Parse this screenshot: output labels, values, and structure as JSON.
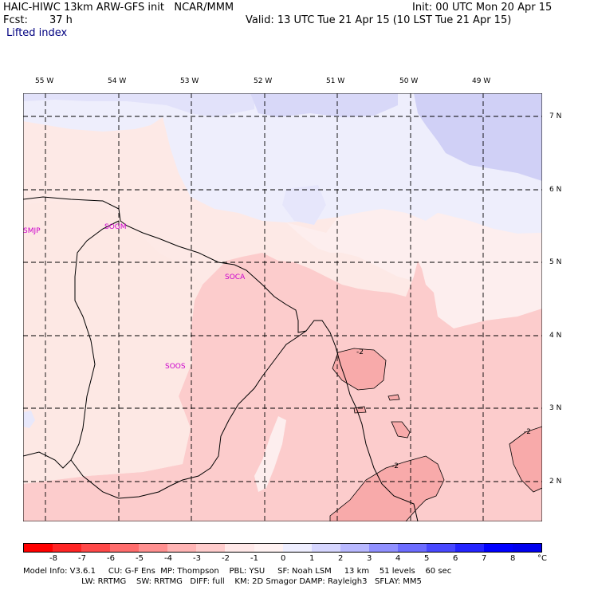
{
  "header": {
    "model_line": "HAIC-HIWC 13km ARW-GFS init   NCAR/MMM",
    "init_line": "Init: 00 UTC Mon 20 Apr 15",
    "fcst_label": "Fcst:",
    "fcst_value": "37 h",
    "valid_line": "Valid: 13 UTC Tue 21 Apr 15 (10 LST Tue 21 Apr 15)",
    "field_name": "Lifted index"
  },
  "map": {
    "lon_labels": [
      "55 W",
      "54 W",
      "53 W",
      "52 W",
      "51 W",
      "50 W",
      "49 W"
    ],
    "lat_labels": [
      "7 N",
      "6 N",
      "5 N",
      "4 N",
      "3 N",
      "2 N"
    ],
    "stations": [
      "SMJP",
      "SOGM",
      "SOCA",
      "SOOS"
    ],
    "contour_labels": [
      "-2",
      "-2",
      "-2"
    ]
  },
  "colorbar": {
    "ticks": [
      "-8",
      "-7",
      "-6",
      "-5",
      "-4",
      "-3",
      "-2",
      "-1",
      "0",
      "1",
      "2",
      "3",
      "4",
      "5",
      "6",
      "7",
      "8"
    ],
    "unit": "°C",
    "colors": [
      "#ff0000",
      "#ff2424",
      "#ff4848",
      "#ff6c6c",
      "#ff9090",
      "#ffb4b4",
      "#ffcccc",
      "#ffe8e8",
      "#fff2f2",
      "#eeeeff",
      "#d6d6ff",
      "#b8b8ff",
      "#9090ff",
      "#6c6cff",
      "#4848ff",
      "#2424ff",
      "#0000ff",
      "#0000ee"
    ]
  },
  "footer": {
    "line1": "Model Info: V3.6.1     CU: G-F Ens  MP: Thompson    PBL: YSU     SF: Noah LSM     13 km    51 levels    60 sec",
    "line2": "                       LW: RRTMG    SW: RRTMG   DIFF: full    KM: 2D Smagor DAMP: Rayleigh3   SFLAY: MM5"
  }
}
